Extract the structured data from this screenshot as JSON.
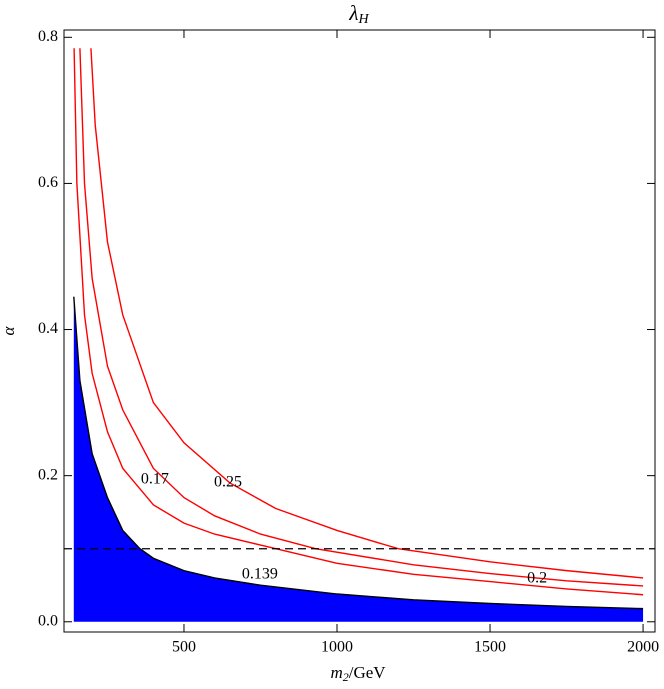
{
  "chart_data": {
    "type": "contour",
    "title": "λ",
    "title_sub": "H",
    "xlabel": "m",
    "xlabel_sub": "2",
    "xlabel_unit": "/GeV",
    "ylabel": "α",
    "xlim": [
      108,
      2039
    ],
    "ylim": [
      -0.014,
      0.81
    ],
    "xticks": [
      500,
      1000,
      1500,
      2000
    ],
    "yticks": [
      {
        "value": 0,
        "label": "0.0"
      },
      {
        "value": 0.2,
        "label": "0.2"
      },
      {
        "value": 0.4,
        "label": "0.4"
      },
      {
        "value": 0.6,
        "label": "0.6"
      },
      {
        "value": 0.8,
        "label": "0.8"
      }
    ],
    "hline": {
      "value": 0.1,
      "color": "#000000",
      "dashed": true
    },
    "series": [
      {
        "name": "0.139",
        "color": "#000000",
        "fill": "#0000ff",
        "label_at": [
          748,
          0.064
        ],
        "x": [
          140,
          160,
          200,
          250,
          300,
          356,
          400,
          500,
          600,
          750,
          1000,
          1250,
          1500,
          1750,
          2000
        ],
        "values": [
          0.445,
          0.33,
          0.23,
          0.17,
          0.125,
          0.1,
          0.087,
          0.07,
          0.06,
          0.05,
          0.038,
          0.03,
          0.025,
          0.021,
          0.018
        ]
      },
      {
        "name": "0.17",
        "color": "#ff0000",
        "label_at": [
          405,
          0.194
        ],
        "x": [
          141,
          150,
          175,
          200,
          250,
          300,
          400,
          500,
          600,
          800,
          1000,
          1250,
          1500,
          1750,
          2000
        ],
        "values": [
          0.785,
          0.6,
          0.42,
          0.34,
          0.26,
          0.21,
          0.16,
          0.135,
          0.12,
          0.1,
          0.08,
          0.065,
          0.055,
          0.045,
          0.037
        ]
      },
      {
        "name": "0.2",
        "color": "#ff0000",
        "label_at": [
          1654,
          0.059
        ],
        "x": [
          160,
          175,
          200,
          250,
          300,
          400,
          500,
          600,
          750,
          930,
          1250,
          1500,
          1750,
          2000
        ],
        "values": [
          0.785,
          0.6,
          0.47,
          0.35,
          0.29,
          0.21,
          0.17,
          0.145,
          0.12,
          0.1,
          0.078,
          0.066,
          0.056,
          0.049
        ]
      },
      {
        "name": "0.25",
        "color": "#ff0000",
        "label_at": [
          644,
          0.19
        ],
        "x": [
          196,
          210,
          250,
          300,
          400,
          500,
          650,
          800,
          1000,
          1200,
          1500,
          1750,
          2000
        ],
        "values": [
          0.785,
          0.68,
          0.52,
          0.42,
          0.3,
          0.245,
          0.19,
          0.155,
          0.125,
          0.1,
          0.082,
          0.07,
          0.06
        ]
      }
    ]
  }
}
